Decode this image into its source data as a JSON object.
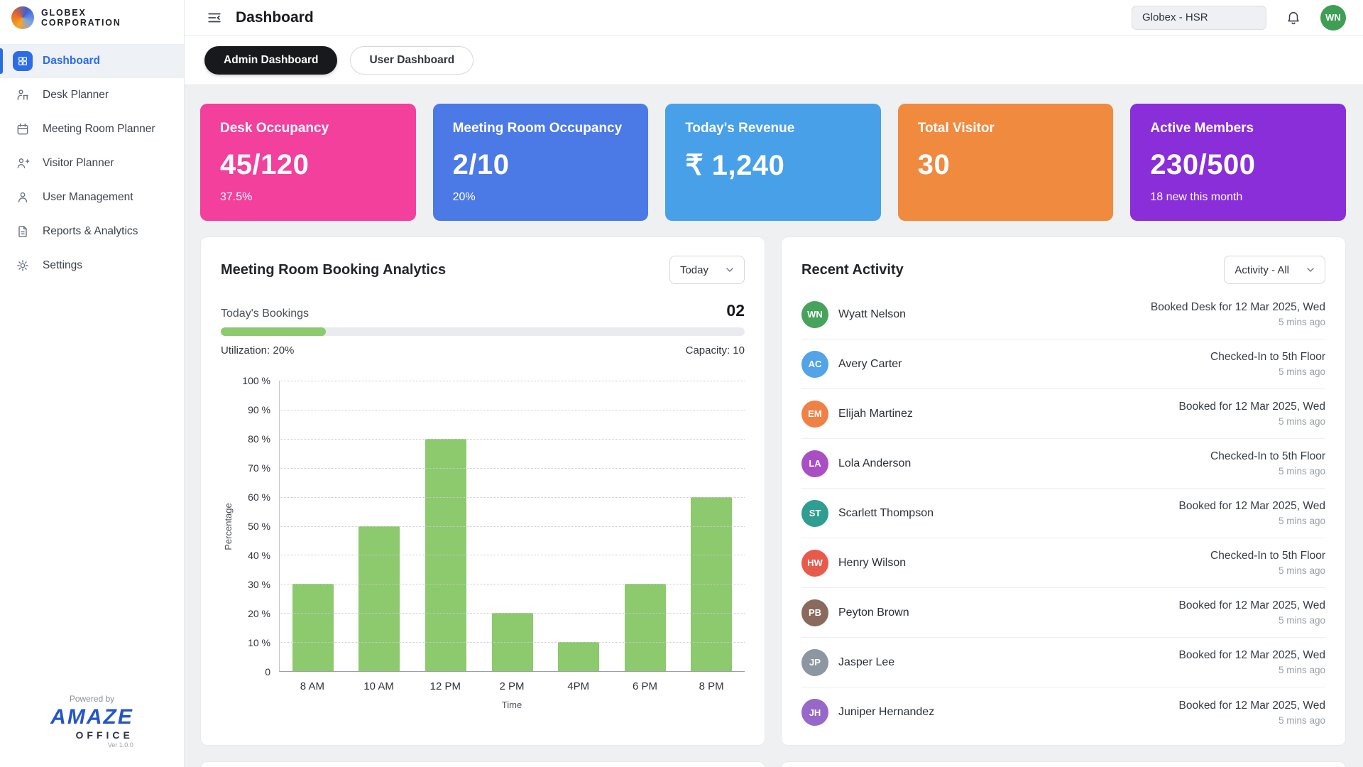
{
  "brand": {
    "company_line1": "GLOBEX",
    "company_line2": "CORPORATION",
    "powered_by": "Powered by",
    "product_name": "AMAZE",
    "product_sub": "OFFICE",
    "version": "Ver 1.0.0"
  },
  "header": {
    "title": "Dashboard",
    "location": "Globex - HSR",
    "avatar_initials": "WN"
  },
  "sidebar": {
    "items": [
      {
        "label": "Dashboard"
      },
      {
        "label": "Desk Planner"
      },
      {
        "label": "Meeting Room Planner"
      },
      {
        "label": "Visitor Planner"
      },
      {
        "label": "User Management"
      },
      {
        "label": "Reports & Analytics"
      },
      {
        "label": "Settings"
      }
    ]
  },
  "tabs": {
    "admin": "Admin Dashboard",
    "user": "User Dashboard"
  },
  "stats": [
    {
      "title": "Desk Occupancy",
      "value": "45/120",
      "sub": "37.5%",
      "color": "#f2409c"
    },
    {
      "title": "Meeting Room Occupancy",
      "value": "2/10",
      "sub": "20%",
      "color": "#4b79e6"
    },
    {
      "title": "Today's Revenue",
      "value": "₹ 1,240",
      "sub": "",
      "color": "#47a0e8"
    },
    {
      "title": "Total Visitor",
      "value": "30",
      "sub": "",
      "color": "#f08a3e"
    },
    {
      "title": "Active Members",
      "value": "230/500",
      "sub": "18 new this month",
      "color": "#8a2ed9"
    }
  ],
  "analytics": {
    "title": "Meeting Room Booking Analytics",
    "range_filter": "Today",
    "bookings_label": "Today's Bookings",
    "bookings_value": "02",
    "utilization": "Utilization: 20%",
    "capacity": "Capacity: 10",
    "progress_percent": 20
  },
  "chart_data": {
    "type": "bar",
    "title": "Meeting Room Booking Analytics",
    "categories": [
      "8 AM",
      "10 AM",
      "12 PM",
      "2 PM",
      "4PM",
      "6 PM",
      "8 PM"
    ],
    "values": [
      30,
      50,
      80,
      20,
      10,
      30,
      60
    ],
    "xlabel": "Time",
    "ylabel": "Percentage",
    "ylim": [
      0,
      100
    ],
    "y_tick_labels": [
      "100 %",
      "90 %",
      "80 %",
      "70 %",
      "60 %",
      "50 %",
      "40 %",
      "30 %",
      "20 %",
      "10 %",
      "0"
    ],
    "bar_color": "#8dc96d",
    "grid": true,
    "legend": false
  },
  "activity": {
    "title": "Recent Activity",
    "filter": "Activity - All",
    "items": [
      {
        "initials": "WN",
        "name": "Wyatt Nelson",
        "action": "Booked Desk for 12 Mar 2025, Wed",
        "time": "5 mins ago",
        "color": "#46a35c"
      },
      {
        "initials": "AC",
        "name": "Avery Carter",
        "action": "Checked-In to 5th Floor",
        "time": "5 mins ago",
        "color": "#52a3e8"
      },
      {
        "initials": "EM",
        "name": "Elijah Martinez",
        "action": "Booked for 12 Mar 2025, Wed",
        "time": "5 mins ago",
        "color": "#ef8146"
      },
      {
        "initials": "LA",
        "name": "Lola Anderson",
        "action": "Checked-In to 5th Floor",
        "time": "5 mins ago",
        "color": "#a94fc4"
      },
      {
        "initials": "ST",
        "name": "Scarlett Thompson",
        "action": "Booked for 12 Mar 2025, Wed",
        "time": "5 mins ago",
        "color": "#2f9e90"
      },
      {
        "initials": "HW",
        "name": "Henry Wilson",
        "action": "Checked-In to 5th Floor",
        "time": "5 mins ago",
        "color": "#e85b4c"
      },
      {
        "initials": "PB",
        "name": "Peyton Brown",
        "action": "Booked for 12 Mar 2025, Wed",
        "time": "5 mins ago",
        "color": "#8a6a5c"
      },
      {
        "initials": "JP",
        "name": "Jasper Lee",
        "action": "Booked for 12 Mar 2025, Wed",
        "time": "5 mins ago",
        "color": "#8d97a1"
      },
      {
        "initials": "JH",
        "name": "Juniper Hernandez",
        "action": "Booked for 12 Mar 2025, Wed",
        "time": "5 mins ago",
        "color": "#9668c8"
      }
    ]
  }
}
